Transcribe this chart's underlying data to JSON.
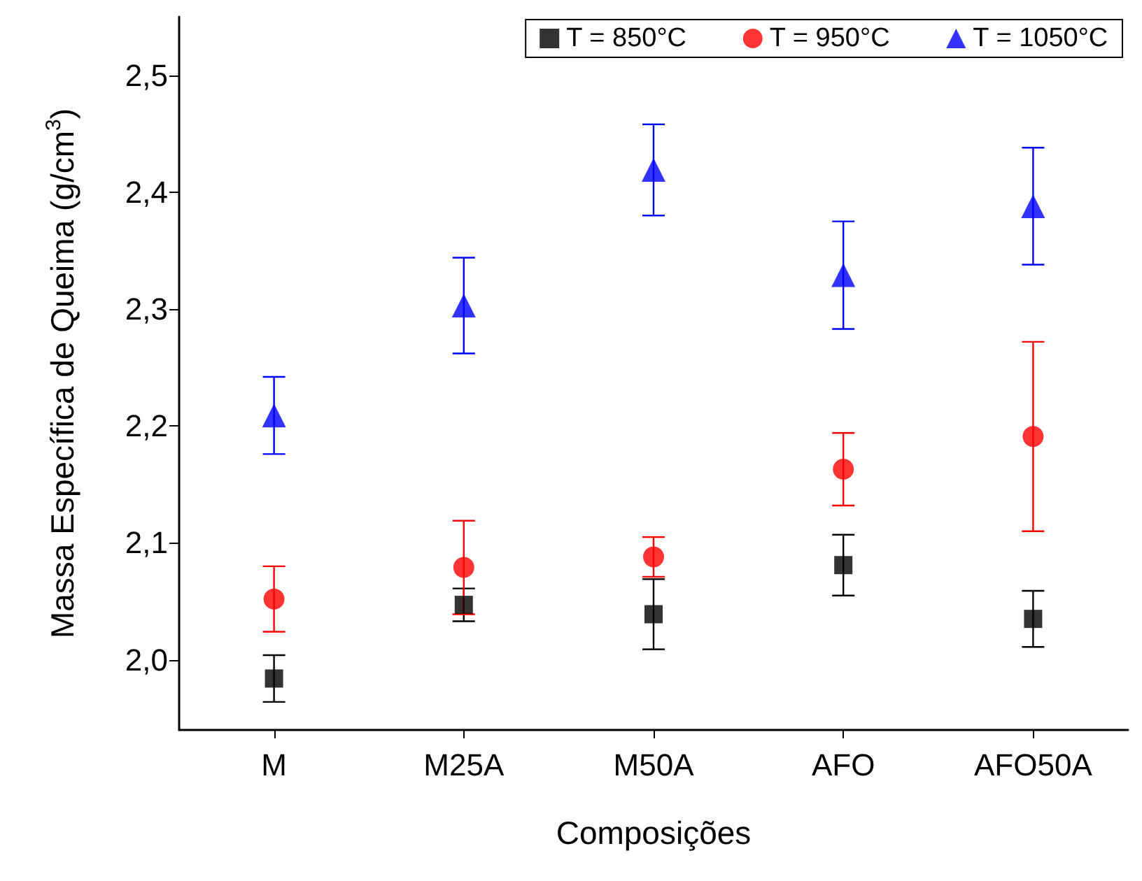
{
  "chart_data": {
    "type": "scatter",
    "xlabel": "Composições",
    "ylabel": "Massa Específica de Queima (g/cm$^{3}$)",
    "categories": [
      "M",
      "M25A",
      "M50A",
      "AFO",
      "AFO50A"
    ],
    "series": [
      {
        "name": "T = 850°C",
        "color": "#000000",
        "marker": "square",
        "values": [
          1.984,
          2.047,
          2.039,
          2.081,
          2.035
        ],
        "errors": [
          0.02,
          0.014,
          0.03,
          0.026,
          0.024
        ]
      },
      {
        "name": "T = 950°C",
        "color": "#ff0000",
        "marker": "circle",
        "values": [
          2.052,
          2.079,
          2.088,
          2.163,
          2.191
        ],
        "errors": [
          0.028,
          0.04,
          0.017,
          0.031,
          0.081
        ]
      },
      {
        "name": "T = 1050°C",
        "color": "#0000ff",
        "marker": "triangle",
        "values": [
          2.209,
          2.303,
          2.419,
          2.329,
          2.388
        ],
        "errors": [
          0.033,
          0.041,
          0.039,
          0.046,
          0.05
        ]
      }
    ],
    "ylim": [
      1.94,
      2.55
    ],
    "yticks": [
      {
        "value": 2.0,
        "label": "2,0"
      },
      {
        "value": 2.1,
        "label": "2,1"
      },
      {
        "value": 2.2,
        "label": "2,2"
      },
      {
        "value": 2.3,
        "label": "2,3"
      },
      {
        "value": 2.4,
        "label": "2,4"
      },
      {
        "value": 2.5,
        "label": "2,5"
      }
    ],
    "legend": "top right",
    "grid": false
  }
}
